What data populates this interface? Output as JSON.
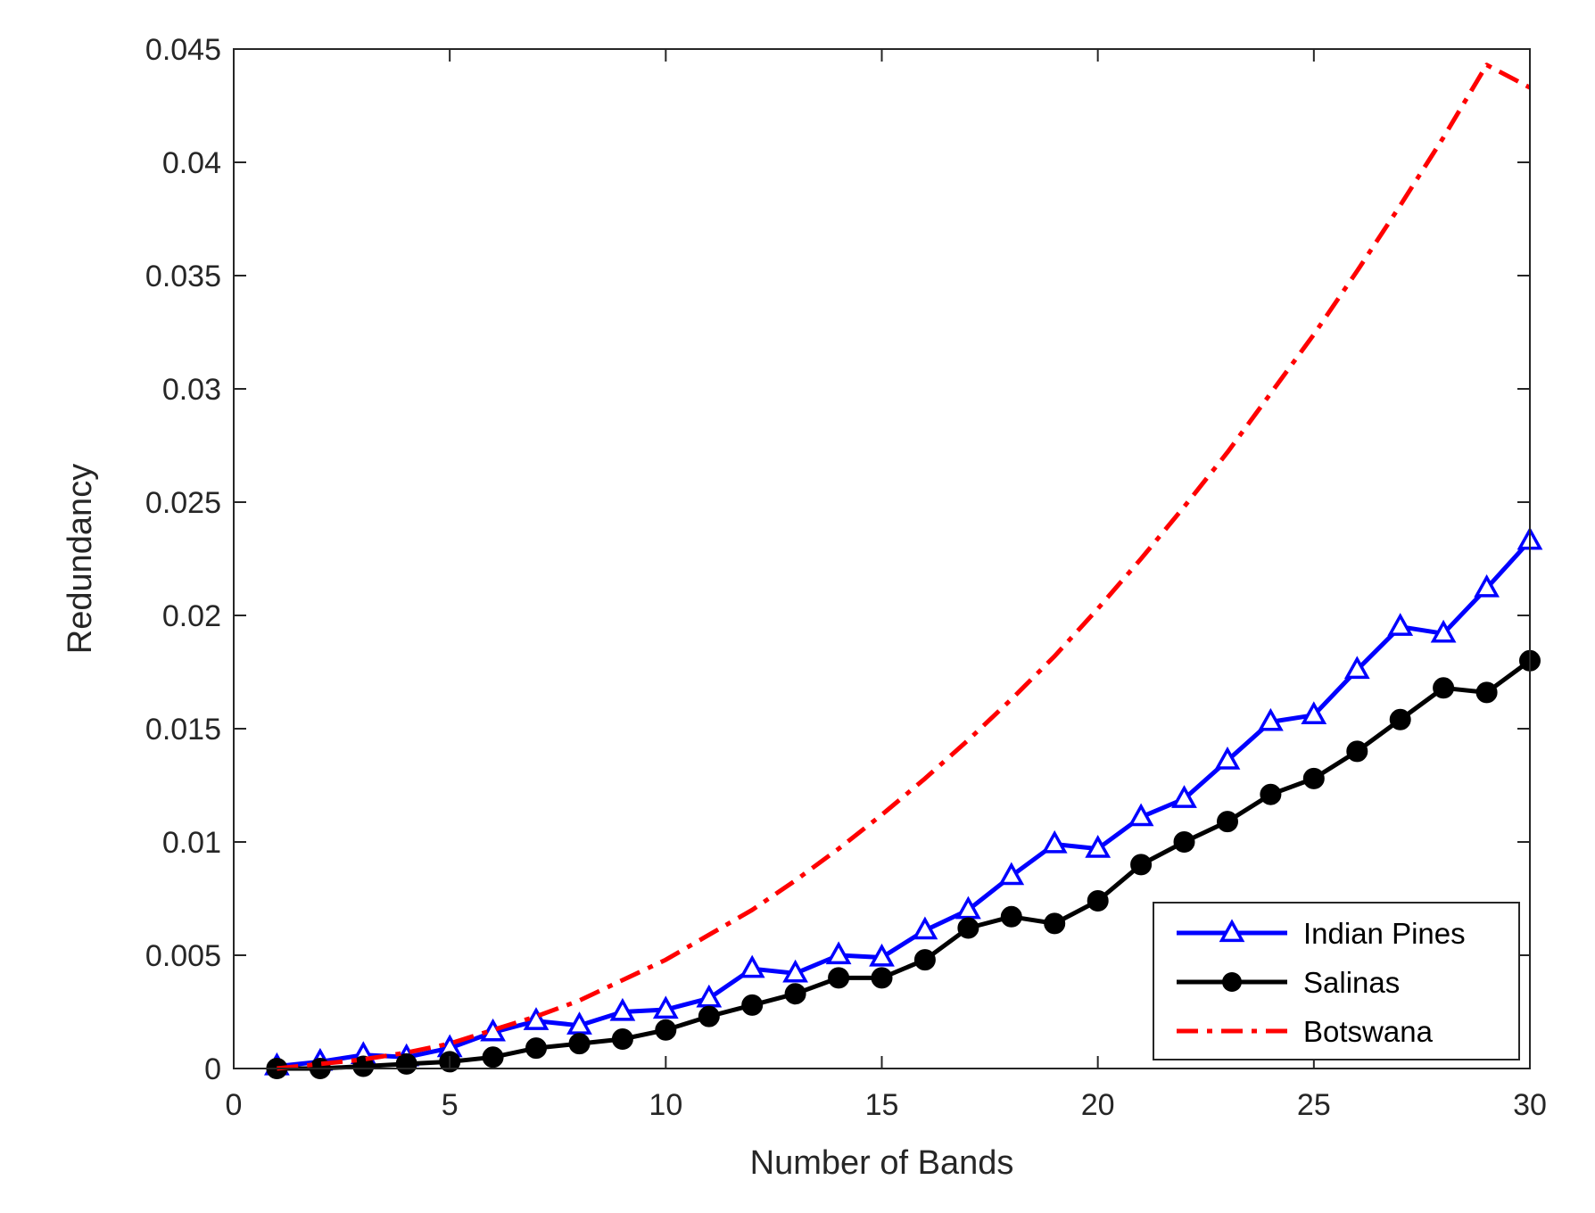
{
  "chart_data": {
    "type": "line",
    "title": "",
    "xlabel": "Number of Bands",
    "ylabel": "Redundancy",
    "xlim": [
      0,
      30
    ],
    "ylim": [
      0,
      0.045
    ],
    "xticks": [
      "0",
      "5",
      "10",
      "15",
      "20",
      "25",
      "30"
    ],
    "yticks": [
      "0",
      "0.005",
      "0.01",
      "0.015",
      "0.02",
      "0.025",
      "0.03",
      "0.035",
      "0.04",
      "0.045"
    ],
    "grid": false,
    "legend_position": "bottom-right",
    "x": [
      1,
      2,
      3,
      4,
      5,
      6,
      7,
      8,
      9,
      10,
      11,
      12,
      13,
      14,
      15,
      16,
      17,
      18,
      19,
      20,
      21,
      22,
      23,
      24,
      25,
      26,
      27,
      28,
      29,
      30
    ],
    "series": [
      {
        "name": "Indian Pines",
        "color": "#0000ff",
        "marker": "triangle",
        "line_style": "solid",
        "values": [
          0.0001,
          0.0003,
          0.0006,
          0.0005,
          0.0009,
          0.0016,
          0.0021,
          0.0019,
          0.0025,
          0.0026,
          0.0031,
          0.0044,
          0.0042,
          0.005,
          0.0049,
          0.0061,
          0.007,
          0.0085,
          0.0099,
          0.0097,
          0.0111,
          0.0119,
          0.0136,
          0.0153,
          0.0156,
          0.0176,
          0.0195,
          0.0192,
          0.0212,
          0.0233
        ]
      },
      {
        "name": "Salinas",
        "color": "#000000",
        "marker": "circle",
        "line_style": "solid",
        "values": [
          0.0,
          0.0,
          0.0001,
          0.0002,
          0.0003,
          0.0005,
          0.0009,
          0.0011,
          0.0013,
          0.0017,
          0.0023,
          0.0028,
          0.0033,
          0.004,
          0.004,
          0.0048,
          0.0062,
          0.0067,
          0.0064,
          0.0074,
          0.009,
          0.01,
          0.0109,
          0.0121,
          0.0128,
          0.014,
          0.0154,
          0.0168,
          0.0166,
          0.018
        ]
      },
      {
        "name": "Botswana",
        "color": "#ff0000",
        "marker": "none",
        "line_style": "dash-dot",
        "values": [
          0.0,
          0.0002,
          0.0004,
          0.0007,
          0.0011,
          0.0017,
          0.0023,
          0.003,
          0.0039,
          0.0048,
          0.0059,
          0.007,
          0.0083,
          0.0097,
          0.0112,
          0.0128,
          0.0145,
          0.0163,
          0.0182,
          0.0203,
          0.0225,
          0.0248,
          0.0272,
          0.0298,
          0.0324,
          0.0352,
          0.0381,
          0.0411,
          0.0443,
          0.0433
        ]
      }
    ]
  }
}
